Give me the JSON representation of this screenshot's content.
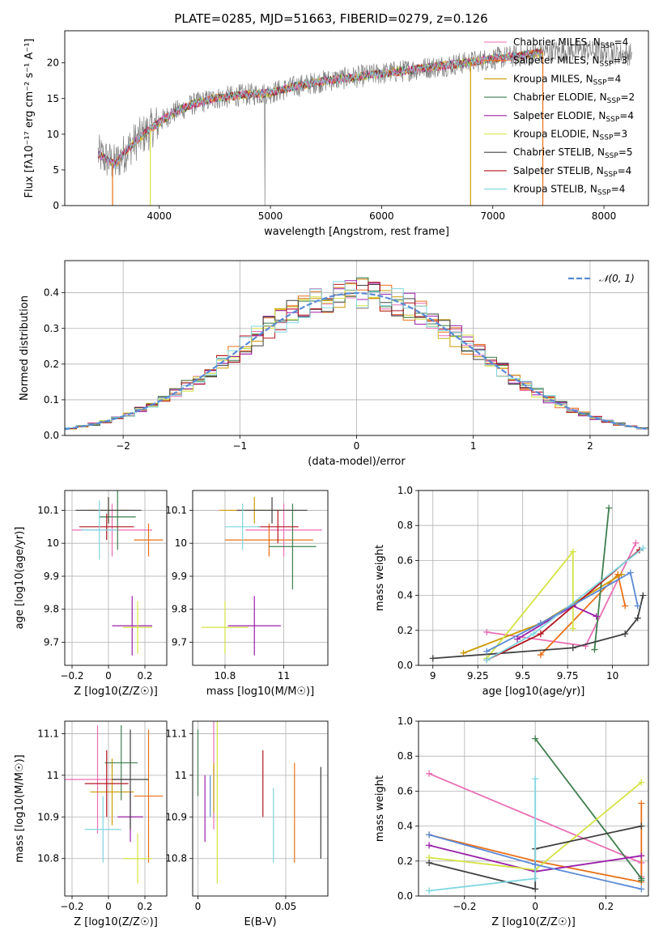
{
  "figure": {
    "title": "PLATE=0285, MJD=51663, FIBERID=0279, z=0.126"
  },
  "models": [
    {
      "name": "Chabrier MILES",
      "nssp": "4",
      "color": "#ea6db5"
    },
    {
      "name": "Salpeter MILES",
      "nssp": "3",
      "color": "#e8711a"
    },
    {
      "name": "Kroupa MILES",
      "nssp": "4",
      "color": "#cc9a00"
    },
    {
      "name": "Chabrier ELODIE",
      "nssp": "2",
      "color": "#3f7f4f"
    },
    {
      "name": "Salpeter ELODIE",
      "nssp": "4",
      "color": "#9b1faa"
    },
    {
      "name": "Kroupa ELODIE",
      "nssp": "3",
      "color": "#d4e342"
    },
    {
      "name": "Chabrier STELIB",
      "nssp": "5",
      "color": "#404040"
    },
    {
      "name": "Salpeter STELIB",
      "nssp": "4",
      "color": "#b3151f"
    },
    {
      "name": "Kroupa STELIB",
      "nssp": "4",
      "color": "#7fd6e0"
    }
  ],
  "chart_data": [
    {
      "type": "line",
      "title": "PLATE=0285, MJD=51663, FIBERID=0279, z=0.126",
      "xlabel": "wavelength [Angstrom, rest frame]",
      "ylabel": "Flux [fλ10⁻¹⁷ erg cm⁻² s⁻¹ A⁻¹]",
      "xlim": [
        3150,
        8400
      ],
      "ylim": [
        0,
        24.5
      ],
      "xticks": [
        4000,
        5000,
        6000,
        7000,
        8000
      ],
      "yticks": [
        0,
        5,
        10,
        15,
        20
      ],
      "grid": false,
      "legend": "top-right",
      "continuum": {
        "x": [
          3450,
          3600,
          3750,
          3900,
          4100,
          4300,
          4500,
          4750,
          5000,
          5250,
          5500,
          5750,
          6000,
          6250,
          6500,
          6750,
          7000,
          7250,
          7500,
          7750,
          8000,
          8200
        ],
        "y": [
          7.2,
          5.8,
          8.5,
          10.5,
          12.8,
          14.2,
          15.0,
          15.5,
          15.8,
          16.8,
          17.5,
          18.0,
          18.5,
          19.0,
          19.5,
          20.0,
          20.6,
          21.0,
          21.6,
          21.8,
          21.5,
          21.2
        ]
      }
    },
    {
      "type": "line",
      "xlabel": "(data-model)/error",
      "ylabel": "Normed distribution",
      "xlim": [
        -2.5,
        2.5
      ],
      "ylim": [
        0,
        0.49
      ],
      "xticks": [
        -2,
        -1,
        0,
        1,
        2
      ],
      "yticks": [
        0.0,
        0.1,
        0.2,
        0.3,
        0.4
      ],
      "grid": true,
      "legend": "top-right",
      "series": [
        {
          "name": "𝒩(0, 1)",
          "style": "dashed",
          "color": "#5a8ad6"
        }
      ],
      "histogram_bin_width": 0.1
    },
    {
      "type": "scatter",
      "xlabel": "Z [log10(Z/Z☉)]",
      "ylabel": "age  [log10(age/yr)]",
      "xlim": [
        -0.24,
        0.32
      ],
      "ylim": [
        9.63,
        10.16
      ],
      "xticks": [
        -0.2,
        0.0,
        0.2
      ],
      "yticks": [
        9.7,
        9.8,
        9.9,
        10.0,
        10.1
      ],
      "grid": true,
      "points": [
        {
          "x": 0.02,
          "y": 10.04,
          "xerr": 0.22,
          "yerr": 0.08,
          "model": 0
        },
        {
          "x": 0.22,
          "y": 10.01,
          "xerr": 0.08,
          "yerr": 0.05,
          "model": 1
        },
        {
          "x": 0.0,
          "y": 10.1,
          "xerr": 0.12,
          "yerr": 0.04,
          "model": 2
        },
        {
          "x": 0.05,
          "y": 10.08,
          "xerr": 0.1,
          "yerr": 0.1,
          "model": 3
        },
        {
          "x": 0.13,
          "y": 9.75,
          "xerr": 0.11,
          "yerr": 0.09,
          "model": 4
        },
        {
          "x": 0.16,
          "y": 9.745,
          "xerr": 0.08,
          "yerr": 0.08,
          "model": 5
        },
        {
          "x": 0.0,
          "y": 10.1,
          "xerr": 0.18,
          "yerr": 0.04,
          "model": 6
        },
        {
          "x": -0.01,
          "y": 10.05,
          "xerr": 0.15,
          "yerr": 0.04,
          "model": 7
        },
        {
          "x": -0.05,
          "y": 10.04,
          "xerr": 0.1,
          "yerr": 0.09,
          "model": 8
        }
      ]
    },
    {
      "type": "scatter",
      "xlabel": "mass [log10(M/M☉)]",
      "ylabel": "",
      "xlim": [
        10.69,
        11.15
      ],
      "ylim": [
        9.63,
        10.16
      ],
      "xticks": [
        10.8,
        11.0
      ],
      "yticks": [
        9.7,
        9.8,
        9.9,
        10.0,
        10.1
      ],
      "grid": true,
      "points": [
        {
          "x": 11.0,
          "y": 10.04,
          "xerr": 0.13,
          "yerr": 0.08,
          "model": 0
        },
        {
          "x": 10.95,
          "y": 10.01,
          "xerr": 0.15,
          "yerr": 0.05,
          "model": 1
        },
        {
          "x": 10.9,
          "y": 10.1,
          "xerr": 0.12,
          "yerr": 0.04,
          "model": 2
        },
        {
          "x": 11.03,
          "y": 9.99,
          "xerr": 0.08,
          "yerr": 0.13,
          "model": 3
        },
        {
          "x": 10.9,
          "y": 9.75,
          "xerr": 0.09,
          "yerr": 0.09,
          "model": 4
        },
        {
          "x": 10.8,
          "y": 9.745,
          "xerr": 0.08,
          "yerr": 0.08,
          "model": 5
        },
        {
          "x": 10.96,
          "y": 10.1,
          "xerr": 0.12,
          "yerr": 0.04,
          "model": 6
        },
        {
          "x": 10.98,
          "y": 10.05,
          "xerr": 0.07,
          "yerr": 0.05,
          "model": 7
        },
        {
          "x": 10.86,
          "y": 10.05,
          "xerr": 0.06,
          "yerr": 0.07,
          "model": 8
        }
      ]
    },
    {
      "type": "line",
      "xlabel": "age  [log10(age/yr)]",
      "ylabel": "mass weight",
      "xlim": [
        8.92,
        10.2
      ],
      "ylim": [
        0.0,
        1.0
      ],
      "xticks": [
        9.0,
        9.25,
        9.5,
        9.75,
        10.0
      ],
      "yticks": [
        0.0,
        0.2,
        0.4,
        0.6,
        0.8,
        1.0
      ],
      "grid": true,
      "series": [
        {
          "model": 0,
          "x": [
            9.3,
            9.85,
            10.13
          ],
          "y": [
            0.19,
            0.11,
            0.7
          ]
        },
        {
          "model": 1,
          "x": [
            9.6,
            10.03,
            10.07
          ],
          "y": [
            0.06,
            0.52,
            0.34
          ]
        },
        {
          "model": 2,
          "x": [
            9.17,
            9.6,
            10.05
          ],
          "y": [
            0.07,
            0.24,
            0.52
          ]
        },
        {
          "model": 3,
          "x": [
            9.9,
            9.98
          ],
          "y": [
            0.09,
            0.9
          ]
        },
        {
          "model": 4,
          "x": [
            9.47,
            9.78,
            9.91
          ],
          "y": [
            0.15,
            0.34,
            0.28
          ]
        },
        {
          "model": 5,
          "x": [
            9.3,
            9.78,
            9.78
          ],
          "y": [
            0.04,
            0.65,
            0.21
          ]
        },
        {
          "model": 6,
          "x": [
            9.0,
            9.78,
            10.07,
            10.14,
            10.17
          ],
          "y": [
            0.04,
            0.1,
            0.18,
            0.27,
            0.4
          ]
        },
        {
          "model": 7,
          "x": [
            9.3,
            9.6,
            10.15
          ],
          "y": [
            0.03,
            0.18,
            0.66
          ]
        },
        {
          "model": 8,
          "x": [
            9.3,
            9.56,
            10.17
          ],
          "y": [
            0.03,
            0.18,
            0.67
          ]
        },
        {
          "model": 2,
          "x": [
            9.3,
            9.6,
            10.1,
            10.14
          ],
          "y": [
            0.08,
            0.24,
            0.53,
            0.34
          ],
          "color": "#5a8ad6"
        }
      ]
    },
    {
      "type": "scatter",
      "xlabel": "Z [log10(Z/Z☉)]",
      "ylabel": "mass [log10(M/M☉)]",
      "xlim": [
        -0.24,
        0.32
      ],
      "ylim": [
        10.71,
        11.13
      ],
      "xticks": [
        -0.2,
        0.0,
        0.2
      ],
      "yticks": [
        10.8,
        10.9,
        11.0,
        11.1
      ],
      "grid": true,
      "points": [
        {
          "x": -0.06,
          "y": 10.99,
          "xerr": 0.18,
          "yerr": 0.13,
          "model": 0
        },
        {
          "x": 0.22,
          "y": 10.95,
          "xerr": 0.08,
          "yerr": 0.16,
          "model": 1
        },
        {
          "x": 0.02,
          "y": 10.96,
          "xerr": 0.12,
          "yerr": 0.08,
          "model": 2
        },
        {
          "x": 0.07,
          "y": 11.03,
          "xerr": 0.09,
          "yerr": 0.09,
          "model": 3
        },
        {
          "x": 0.12,
          "y": 10.9,
          "xerr": 0.07,
          "yerr": 0.06,
          "model": 4
        },
        {
          "x": 0.16,
          "y": 10.8,
          "xerr": 0.08,
          "yerr": 0.06,
          "model": 5
        },
        {
          "x": 0.12,
          "y": 10.99,
          "xerr": 0.1,
          "yerr": 0.12,
          "model": 6
        },
        {
          "x": -0.01,
          "y": 10.98,
          "xerr": 0.12,
          "yerr": 0.08,
          "model": 7
        },
        {
          "x": -0.03,
          "y": 10.87,
          "xerr": 0.1,
          "yerr": 0.08,
          "model": 8
        }
      ]
    },
    {
      "type": "scatter",
      "xlabel": "E(B-V)",
      "ylabel": "",
      "xlim": [
        -0.003,
        0.074
      ],
      "ylim": [
        10.71,
        11.13
      ],
      "xticks": [
        0.0,
        0.05
      ],
      "yticks": [
        10.8,
        10.9,
        11.0,
        11.1
      ],
      "grid": true,
      "points": [
        {
          "x": 0.009,
          "y": 11.0,
          "yerr": 0.13,
          "model": 0
        },
        {
          "x": 0.055,
          "y": 10.91,
          "yerr": 0.12,
          "model": 1
        },
        {
          "x": 0.009,
          "y": 10.97,
          "yerr": 0.06,
          "model": 2
        },
        {
          "x": 0.0,
          "y": 11.03,
          "yerr": 0.08,
          "model": 3
        },
        {
          "x": 0.004,
          "y": 10.92,
          "yerr": 0.08,
          "model": 4
        },
        {
          "x": 0.011,
          "y": 10.94,
          "yerr": 0.2,
          "model": 5
        },
        {
          "x": 0.07,
          "y": 10.91,
          "yerr": 0.11,
          "model": 6
        },
        {
          "x": 0.037,
          "y": 10.98,
          "yerr": 0.08,
          "model": 7
        },
        {
          "x": 0.043,
          "y": 10.88,
          "yerr": 0.09,
          "model": 8
        },
        {
          "x": 0.007,
          "y": 10.95,
          "yerr": 0.05,
          "model": 2,
          "color": "#5a8ad6"
        }
      ]
    },
    {
      "type": "line",
      "xlabel": "Z [log10(Z/Z☉)]",
      "ylabel": "mass weight",
      "xlim": [
        -0.33,
        0.32
      ],
      "ylim": [
        0.0,
        1.0
      ],
      "xticks": [
        -0.2,
        0.0,
        0.2
      ],
      "yticks": [
        0.0,
        0.2,
        0.4,
        0.6,
        0.8,
        1.0
      ],
      "grid": true,
      "series": [
        {
          "model": 0,
          "x": [
            -0.3,
            0.3,
            0.3
          ],
          "y": [
            0.7,
            0.19,
            0.11
          ]
        },
        {
          "model": 1,
          "x": [
            -0.3,
            0.0,
            0.3,
            0.3
          ],
          "y": [
            0.35,
            0.2,
            0.08,
            0.53
          ]
        },
        {
          "model": 3,
          "x": [
            0.0,
            0.3,
            0.3
          ],
          "y": [
            0.9,
            0.1,
            0.09
          ]
        },
        {
          "model": 4,
          "x": [
            -0.3,
            0.0,
            0.3
          ],
          "y": [
            0.29,
            0.14,
            0.23
          ]
        },
        {
          "model": 5,
          "x": [
            -0.3,
            0.0,
            0.3
          ],
          "y": [
            0.22,
            0.15,
            0.65
          ]
        },
        {
          "model": 6,
          "x": [
            -0.3,
            0.0,
            0.0,
            0.3
          ],
          "y": [
            0.19,
            0.04,
            0.27,
            0.4
          ]
        },
        {
          "model": 8,
          "x": [
            -0.3,
            0.0,
            0.0
          ],
          "y": [
            0.03,
            0.1,
            0.67
          ]
        },
        {
          "model": 2,
          "x": [
            -0.3,
            0.0,
            0.3
          ],
          "y": [
            0.35,
            0.18,
            0.04
          ],
          "color": "#5a8ad6"
        }
      ]
    }
  ]
}
